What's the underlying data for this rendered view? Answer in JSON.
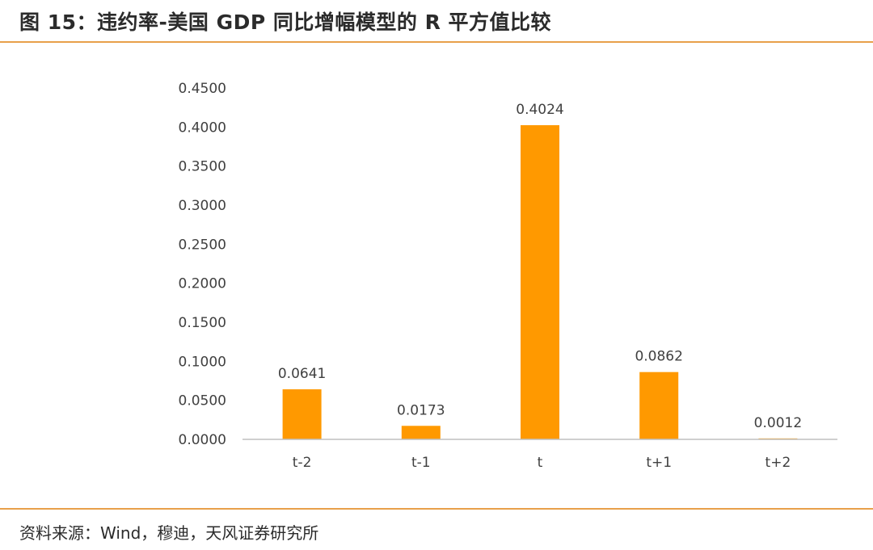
{
  "header": {
    "title": "图 15：违约率-美国 GDP 同比增幅模型的 R 平方值比较"
  },
  "footer": {
    "source": "资料来源：Wind，穆迪，天风证券研究所"
  },
  "colors": {
    "accent_rule": "#e8a04a",
    "bar": "#ff9900",
    "axis": "#bfbfbf",
    "text": "#404040"
  },
  "chart_data": {
    "type": "bar",
    "title": "",
    "xlabel": "",
    "ylabel": "",
    "categories": [
      "t-2",
      "t-1",
      "t",
      "t+1",
      "t+2"
    ],
    "series": [
      {
        "values": [
          0.0641,
          0.0173,
          0.4024,
          0.0862,
          0.0012
        ]
      }
    ],
    "data_labels": [
      "0.0641",
      "0.0173",
      "0.4024",
      "0.0862",
      "0.0012"
    ],
    "ylim": [
      0,
      0.45
    ],
    "y_ticks": [
      0,
      0.05,
      0.1,
      0.15,
      0.2,
      0.25,
      0.3,
      0.35,
      0.4,
      0.45
    ],
    "y_tick_labels": [
      "0.0000",
      "0.0500",
      "0.1000",
      "0.1500",
      "0.2000",
      "0.2500",
      "0.3000",
      "0.3500",
      "0.4000",
      "0.4500"
    ],
    "grid": false,
    "legend": "none"
  }
}
